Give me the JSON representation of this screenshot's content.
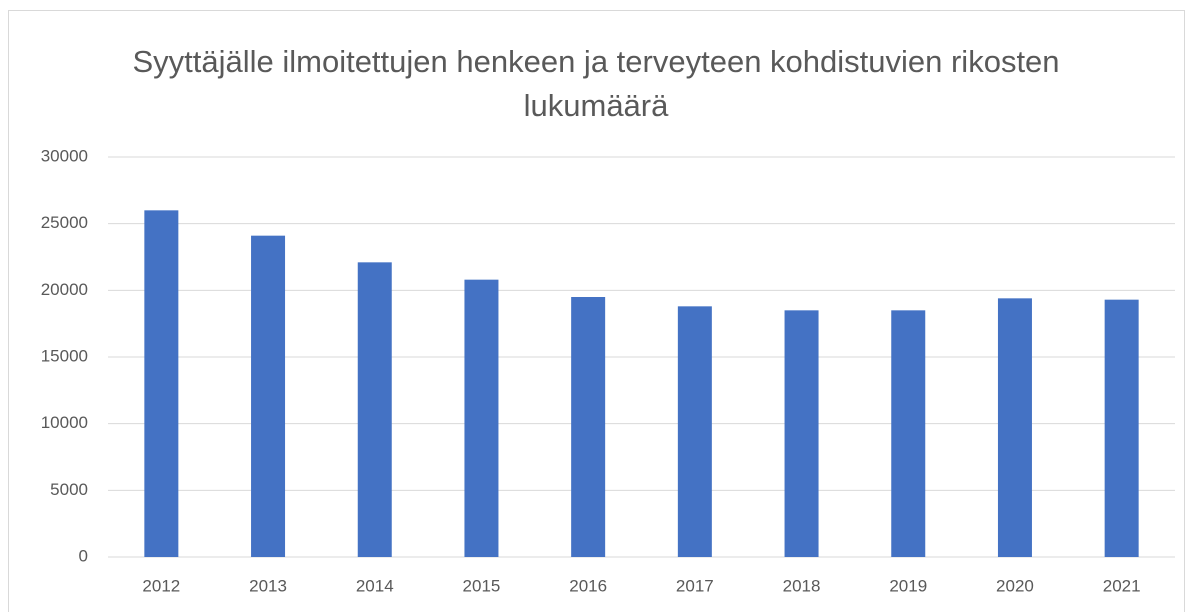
{
  "chart_data": {
    "type": "bar",
    "title": "Syyttäjälle ilmoitettujen henkeen ja terveyteen kohdistuvien rikosten lukumäärä",
    "categories": [
      "2012",
      "2013",
      "2014",
      "2015",
      "2016",
      "2017",
      "2018",
      "2019",
      "2020",
      "2021"
    ],
    "values": [
      26000,
      24100,
      22100,
      20800,
      19500,
      18800,
      18500,
      18500,
      19400,
      19300
    ],
    "color": "#4472c4",
    "ylim": [
      0,
      30000
    ],
    "yticks": [
      0,
      5000,
      10000,
      15000,
      20000,
      25000,
      30000
    ],
    "grid": true
  }
}
